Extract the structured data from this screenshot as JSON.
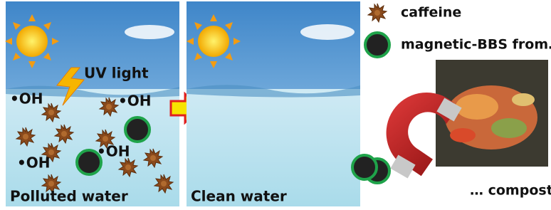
{
  "legend": {
    "caffeine": "caffeine",
    "magnetic": "magnetic-BBS from…"
  },
  "panels": [
    {
      "label": "Polluted water",
      "uv": "UV light",
      "radicals": [
        "•OH",
        "•OH",
        "•OH",
        "•OH"
      ]
    },
    {
      "label": "Clean water"
    }
  ],
  "compost": "… compost"
}
